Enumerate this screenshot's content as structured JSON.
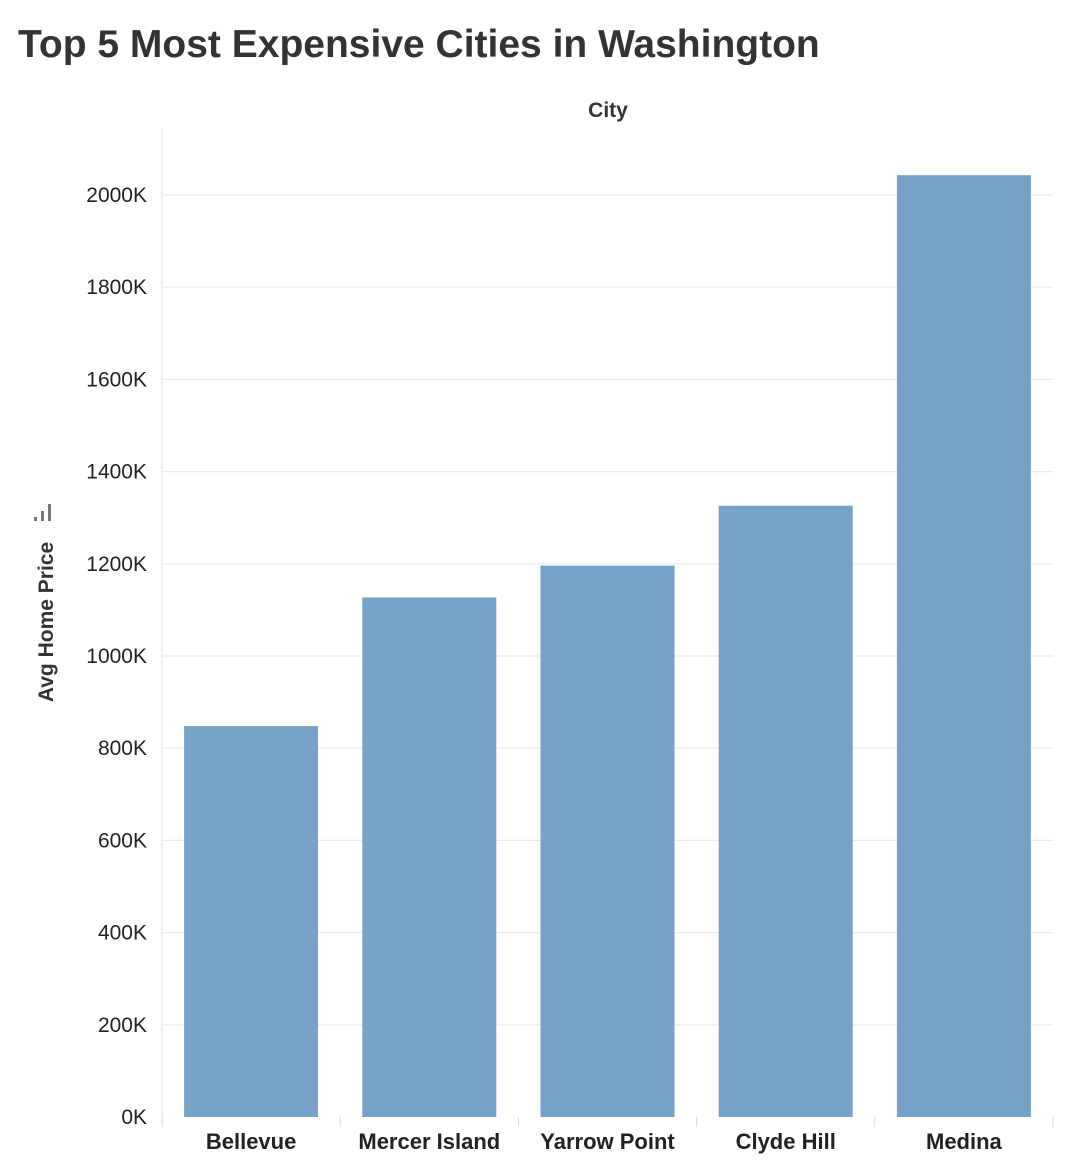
{
  "chart_data": {
    "type": "bar",
    "title": "Top 5 Most Expensive Cities in Washington",
    "column_header": "City",
    "xlabel": "",
    "ylabel": "Avg Home Price",
    "categories": [
      "Bellevue",
      "Mercer Island",
      "Yarrow Point",
      "Clyde Hill",
      "Medina"
    ],
    "values": [
      848000,
      1127000,
      1196000,
      1326000,
      2043000
    ],
    "ylim": [
      0,
      2150000
    ],
    "yticks": [
      0,
      200000,
      400000,
      600000,
      800000,
      1000000,
      1200000,
      1400000,
      1600000,
      1800000,
      2000000
    ],
    "ytick_labels": [
      "0K",
      "200K",
      "400K",
      "600K",
      "800K",
      "1000K",
      "1200K",
      "1400K",
      "1600K",
      "1800K",
      "2000K"
    ],
    "grid": true,
    "legend": "none",
    "bar_color": "#76a2c7",
    "gridline_color": "#ececec",
    "text_color": "#333333",
    "sort_icon": "sort-ascending-icon"
  }
}
